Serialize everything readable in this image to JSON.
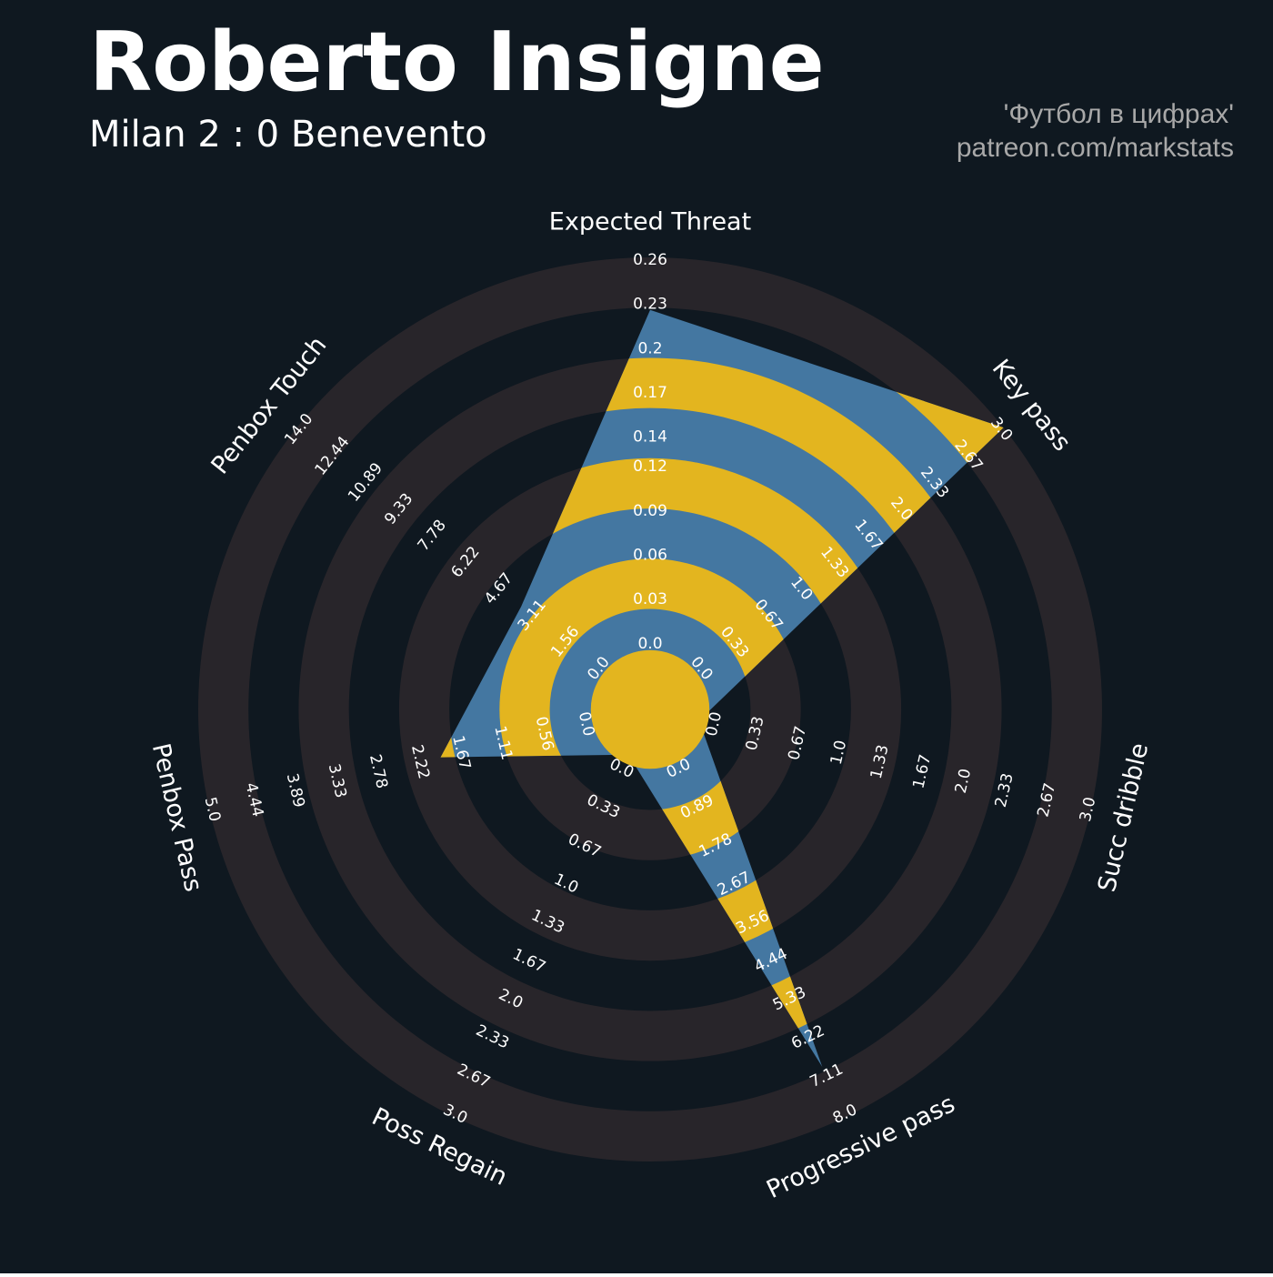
{
  "chart_data": {
    "type": "radar",
    "title": "Roberto Insigne",
    "subtitle": "Milan 2 : 0 Benevento",
    "credits": [
      "'Футбол в цифрах'",
      "patreon.com/markstats"
    ],
    "colors": {
      "background": "#0f1820",
      "rings": "#28252a",
      "data": "#4477a1",
      "data_alt": "#e3b51f"
    },
    "params": [
      {
        "name": "Expected Threat",
        "lim": [
          0,
          0.26
        ],
        "ticks": [
          {
            "value": 0,
            "label": "0.0"
          },
          0.03,
          0.06,
          0.09,
          0.12,
          0.14,
          0.17,
          0.2,
          0.23,
          0.26
        ]
      },
      {
        "name": "Key pass",
        "lim": [
          0,
          3
        ],
        "ticks": [
          {
            "value": 0,
            "label": "0.0"
          },
          0.33,
          0.67,
          {
            "value": 1,
            "label": "1.0"
          },
          1.33,
          1.67,
          {
            "value": 2,
            "label": "2.0"
          },
          2.33,
          2.67,
          {
            "value": 3,
            "label": "3.0"
          }
        ]
      },
      {
        "name": "Succ dribble",
        "lim": [
          0,
          3
        ],
        "ticks": [
          {
            "value": 0,
            "label": "0.0"
          },
          0.33,
          0.67,
          {
            "value": 1,
            "label": "1.0"
          },
          1.33,
          1.67,
          {
            "value": 2,
            "label": "2.0"
          },
          2.33,
          2.67,
          {
            "value": 3,
            "label": "3.0"
          }
        ]
      },
      {
        "name": "Progressive pass",
        "lim": [
          0,
          8
        ],
        "ticks": [
          {
            "value": 0,
            "label": "0.0"
          },
          0.89,
          1.78,
          2.67,
          3.56,
          4.44,
          5.33,
          6.22,
          7.11,
          {
            "value": 8,
            "label": "8.0"
          }
        ]
      },
      {
        "name": "Poss Regain",
        "lim": [
          0,
          3
        ],
        "ticks": [
          {
            "value": 0,
            "label": "0.0"
          },
          0.33,
          0.67,
          {
            "value": 1,
            "label": "1.0"
          },
          1.33,
          1.67,
          {
            "value": 2,
            "label": "2.0"
          },
          2.33,
          2.67,
          {
            "value": 3,
            "label": "3.0"
          }
        ]
      },
      {
        "name": "Penbox Pass",
        "lim": [
          0,
          5
        ],
        "ticks": [
          {
            "value": 0,
            "label": "0.0"
          },
          0.56,
          1.11,
          1.67,
          2.22,
          2.78,
          3.33,
          3.89,
          4.44,
          {
            "value": 5,
            "label": "5.0"
          }
        ]
      },
      {
        "name": "Penbox Touch",
        "lim": [
          0,
          14
        ],
        "ticks": [
          {
            "value": 0,
            "label": "0.0"
          },
          1.56,
          3.11,
          4.67,
          6.22,
          7.78,
          9.33,
          10.89,
          12.44,
          {
            "value": 14,
            "label": "14.0"
          }
        ]
      }
    ],
    "values": [
      0.226,
      3,
      0,
      6.9,
      0,
      2.05,
      4
    ]
  }
}
